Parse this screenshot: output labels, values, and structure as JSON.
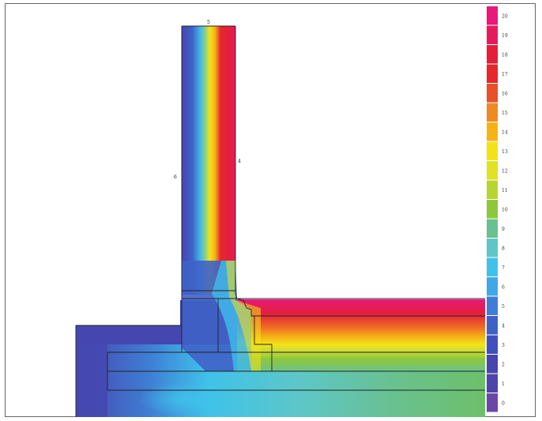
{
  "dimension_labels": {
    "top_width": "5",
    "left_side": "6",
    "right_side": "4"
  },
  "legend": {
    "labels": [
      "20",
      "19",
      "18",
      "17",
      "16",
      "15",
      "14",
      "13",
      "12",
      "11",
      "10",
      "9",
      "8",
      "7",
      "6",
      "5",
      "4",
      "3",
      "2",
      "1",
      "0"
    ],
    "colors": [
      "#e8197a",
      "#e51a5c",
      "#e41f3a",
      "#e5282b",
      "#e6512a",
      "#ee8a22",
      "#f6b317",
      "#f4e218",
      "#dfe323",
      "#b8d52f",
      "#8ec83a",
      "#69c18f",
      "#5ec6c7",
      "#3fc2ea",
      "#40a9e5",
      "#3f7ed4",
      "#3d62c4",
      "#3f4fbb",
      "#4746ae",
      "#4f44a8",
      "#6a47a5"
    ]
  }
}
